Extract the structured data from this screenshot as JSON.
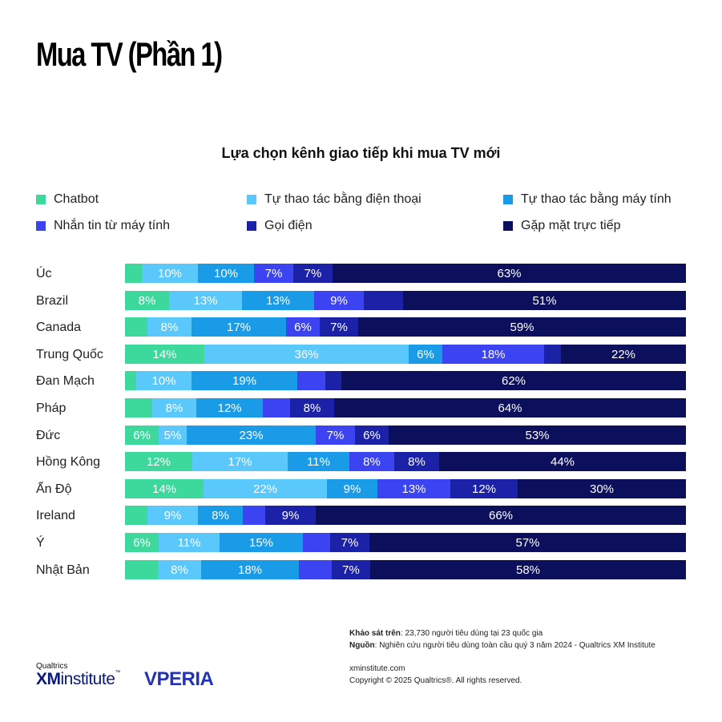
{
  "page_title": "Mua TV (Phần 1)",
  "legend": [
    {
      "label": "Chatbot",
      "color": "#3dd99c"
    },
    {
      "label": "Tự thao tác bằng điện thoại",
      "color": "#5ac8fa"
    },
    {
      "label": "Tự thao tác bằng máy tính",
      "color": "#1a9be8"
    },
    {
      "label": "Nhắn tin từ máy tính",
      "color": "#3b44f0"
    },
    {
      "label": "Gọi điện",
      "color": "#1c22a8"
    },
    {
      "label": "Gặp mặt trực tiếp",
      "color": "#0b0f5c"
    }
  ],
  "chart_data": {
    "type": "bar",
    "orientation": "horizontal-stacked-100",
    "title": "Lựa chọn kênh giao tiếp khi mua TV mới",
    "categories": [
      "Úc",
      "Brazil",
      "Canada",
      "Trung Quốc",
      "Đan Mạch",
      "Pháp",
      "Đức",
      "Hồng Kông",
      "Ấn Độ",
      "Ireland",
      "Ý",
      "Nhật Bản"
    ],
    "series": [
      {
        "name": "Chatbot",
        "values": [
          3,
          8,
          4,
          14,
          2,
          5,
          6,
          12,
          14,
          4,
          6,
          6
        ]
      },
      {
        "name": "Tự thao tác bằng điện thoại",
        "values": [
          10,
          13,
          8,
          36,
          10,
          8,
          5,
          17,
          22,
          9,
          11,
          8
        ]
      },
      {
        "name": "Tự thao tác bằng máy tính",
        "values": [
          10,
          13,
          17,
          6,
          19,
          12,
          23,
          11,
          9,
          8,
          15,
          18
        ]
      },
      {
        "name": "Nhắn tin từ máy tính",
        "values": [
          7,
          9,
          6,
          18,
          5,
          5,
          7,
          8,
          13,
          4,
          5,
          6
        ]
      },
      {
        "name": "Gọi điện",
        "values": [
          7,
          7,
          7,
          3,
          3,
          8,
          6,
          8,
          12,
          9,
          7,
          7
        ]
      },
      {
        "name": "Gặp mặt trực tiếp",
        "values": [
          63,
          51,
          59,
          22,
          62,
          64,
          53,
          44,
          30,
          66,
          57,
          58
        ]
      }
    ],
    "labels": [
      [
        "",
        "10%",
        "10%",
        "7%",
        "7%",
        "63%"
      ],
      [
        "8%",
        "13%",
        "13%",
        "9%",
        "",
        "51%"
      ],
      [
        "",
        "8%",
        "17%",
        "6%",
        "7%",
        "59%"
      ],
      [
        "14%",
        "36%",
        "6%",
        "18%",
        "",
        "22%"
      ],
      [
        "",
        "10%",
        "19%",
        "",
        "",
        "62%"
      ],
      [
        "",
        "8%",
        "12%",
        "",
        "8%",
        "64%"
      ],
      [
        "6%",
        "5%",
        "23%",
        "7%",
        "6%",
        "53%"
      ],
      [
        "12%",
        "17%",
        "11%",
        "8%",
        "8%",
        "44%"
      ],
      [
        "14%",
        "22%",
        "9%",
        "13%",
        "12%",
        "30%"
      ],
      [
        "",
        "9%",
        "8%",
        "",
        "9%",
        "66%"
      ],
      [
        "6%",
        "11%",
        "15%",
        "",
        "7%",
        "57%"
      ],
      [
        "",
        "8%",
        "18%",
        "",
        "7%",
        "58%"
      ]
    ]
  },
  "footer": {
    "survey_label": "Khảo sát trên",
    "survey_text": ": 23,730 người tiêu dùng tại 23 quốc gia",
    "source_label": "Nguồn",
    "source_text": ": Nghiên cứu người tiêu dùng toàn cầu quý 3 năm 2024 - Qualtrics XM Institute",
    "url": "xminstitute.com",
    "copyright": "Copyright © 2025 Qualtrics®. All rights reserved."
  },
  "logos": {
    "qualtrics": "Qualtrics",
    "xm": "XM",
    "institute": "institute",
    "tm": "™",
    "vperia": "VPERIA"
  }
}
